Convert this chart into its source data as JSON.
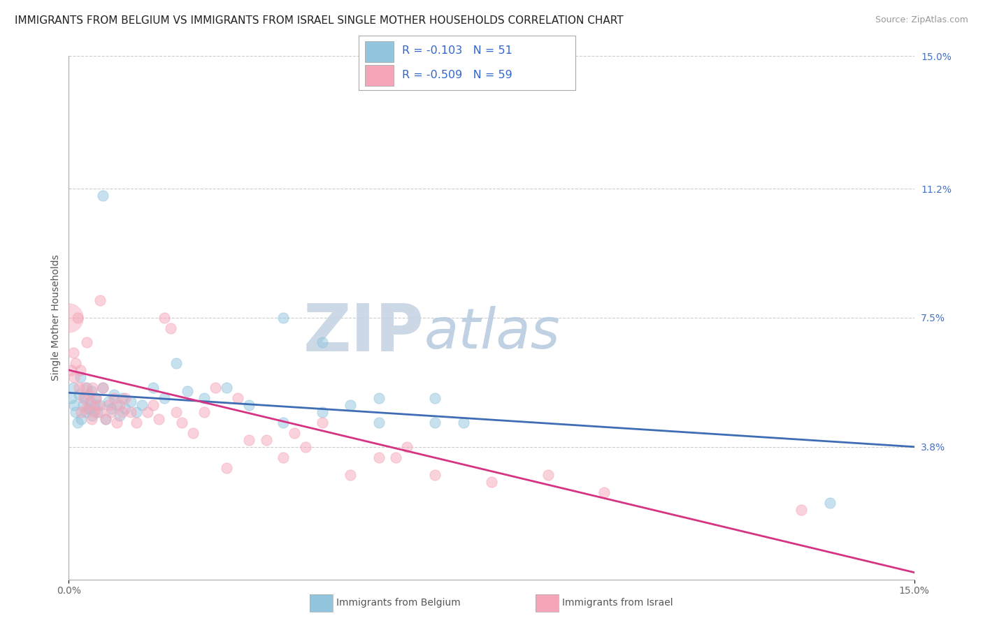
{
  "title": "IMMIGRANTS FROM BELGIUM VS IMMIGRANTS FROM ISRAEL SINGLE MOTHER HOUSEHOLDS CORRELATION CHART",
  "source": "Source: ZipAtlas.com",
  "xlim": [
    0.0,
    15.0
  ],
  "ylim": [
    0.0,
    15.0
  ],
  "legend_entries": [
    {
      "label": "Immigrants from Belgium",
      "R": -0.103,
      "N": 51
    },
    {
      "label": "Immigrants from Israel",
      "R": -0.509,
      "N": 59
    }
  ],
  "belgium_scatter_x": [
    0.05,
    0.08,
    0.1,
    0.12,
    0.15,
    0.18,
    0.2,
    0.22,
    0.25,
    0.28,
    0.3,
    0.32,
    0.35,
    0.38,
    0.4,
    0.42,
    0.45,
    0.48,
    0.5,
    0.55,
    0.6,
    0.65,
    0.7,
    0.75,
    0.8,
    0.85,
    0.9,
    0.95,
    1.0,
    1.1,
    1.2,
    1.3,
    1.5,
    1.7,
    1.9,
    2.1,
    2.4,
    2.8,
    3.2,
    3.8,
    4.5,
    5.5,
    7.0,
    3.8,
    4.5,
    5.0,
    5.5,
    6.5,
    6.5,
    13.5,
    0.6
  ],
  "belgium_scatter_y": [
    5.2,
    5.5,
    5.0,
    4.8,
    4.5,
    5.3,
    5.8,
    4.6,
    5.0,
    5.2,
    4.8,
    5.5,
    4.9,
    5.1,
    5.4,
    4.7,
    5.0,
    5.2,
    4.8,
    5.0,
    5.5,
    4.6,
    5.1,
    4.9,
    5.3,
    5.0,
    4.7,
    5.2,
    4.9,
    5.1,
    4.8,
    5.0,
    5.5,
    5.2,
    6.2,
    5.4,
    5.2,
    5.5,
    5.0,
    4.5,
    4.8,
    4.5,
    4.5,
    7.5,
    6.8,
    5.0,
    5.2,
    4.5,
    5.2,
    2.2,
    11.0
  ],
  "israel_scatter_x": [
    0.05,
    0.08,
    0.1,
    0.12,
    0.15,
    0.18,
    0.2,
    0.22,
    0.25,
    0.28,
    0.3,
    0.32,
    0.35,
    0.38,
    0.4,
    0.42,
    0.45,
    0.48,
    0.5,
    0.55,
    0.6,
    0.65,
    0.7,
    0.75,
    0.8,
    0.85,
    0.9,
    0.95,
    1.0,
    1.1,
    1.2,
    1.4,
    1.5,
    1.6,
    1.7,
    1.9,
    2.0,
    2.2,
    2.4,
    2.8,
    3.0,
    3.5,
    4.0,
    4.5,
    5.5,
    6.0,
    7.5,
    8.5,
    1.8,
    2.6,
    3.2,
    3.8,
    4.2,
    5.0,
    5.8,
    6.5,
    9.5,
    13.0,
    0.55
  ],
  "israel_scatter_y": [
    6.0,
    6.5,
    5.8,
    6.2,
    7.5,
    5.5,
    6.0,
    4.8,
    5.2,
    5.5,
    4.9,
    6.8,
    5.3,
    5.0,
    4.6,
    5.5,
    4.8,
    5.2,
    5.0,
    4.8,
    5.5,
    4.6,
    5.0,
    4.8,
    5.2,
    4.5,
    5.0,
    4.8,
    5.2,
    4.8,
    4.5,
    4.8,
    5.0,
    4.6,
    7.5,
    4.8,
    4.5,
    4.2,
    4.8,
    3.2,
    5.2,
    4.0,
    4.2,
    4.5,
    3.5,
    3.8,
    2.8,
    3.0,
    7.2,
    5.5,
    4.0,
    3.5,
    3.8,
    3.0,
    3.5,
    3.0,
    2.5,
    2.0,
    8.0
  ],
  "belgium_line_x0": 0.0,
  "belgium_line_y0": 5.35,
  "belgium_line_x1": 15.0,
  "belgium_line_y1": 3.8,
  "israel_line_x0": 0.0,
  "israel_line_y0": 6.0,
  "israel_line_x1": 15.0,
  "israel_line_y1": 0.2,
  "belgium_dot_color": "#92c5de",
  "israel_dot_color": "#f4a6b8",
  "belgium_line_color": "#3e6db5",
  "israel_line_color": "#d63384",
  "watermark_zip_color": "#c8d8e8",
  "watermark_atlas_color": "#b8cce4",
  "background_color": "#ffffff",
  "grid_color": "#cccccc",
  "ytick_right_vals": [
    3.8,
    7.5,
    11.2,
    15.0
  ],
  "ytick_right_labels": [
    "3.8%",
    "7.5%",
    "11.2%",
    "15.0%"
  ],
  "title_fontsize": 11,
  "dot_size": 120
}
